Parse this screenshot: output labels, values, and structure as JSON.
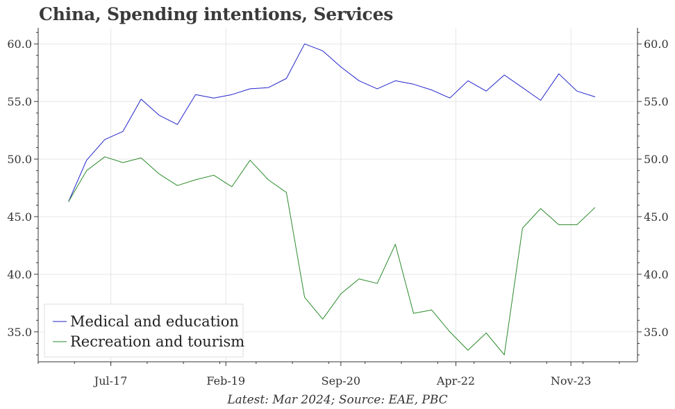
{
  "title": "China, Spending intentions, Services",
  "footer": "Latest: Mar 2024; Source: EAE, PBC",
  "colors": {
    "medical": "#2222cc",
    "recreation": "#2a8a2a",
    "grid": "#e6e6e6",
    "axis": "#333333"
  },
  "chart_data": {
    "type": "line",
    "title": "China, Spending intentions, Services",
    "ylim": [
      32.4,
      61.4
    ],
    "y_ticks": [
      35.0,
      40.0,
      45.0,
      50.0,
      55.0,
      60.0
    ],
    "y_tick_labels": [
      "35.0",
      "40.0",
      "45.0",
      "50.0",
      "55.0",
      "60.0"
    ],
    "x_tick_labels": [
      "Jul-17",
      "Feb-19",
      "Sep-20",
      "Apr-22",
      "Nov-23"
    ],
    "x_tick_dates": [
      "2017-07",
      "2019-02",
      "2020-09",
      "2022-04",
      "2023-11"
    ],
    "xlim": [
      "2016-07",
      "2024-10"
    ],
    "grid": true,
    "legend_placement": "bottom-left",
    "x": [
      "2016-12",
      "2017-03",
      "2017-06",
      "2017-09",
      "2017-12",
      "2018-03",
      "2018-06",
      "2018-09",
      "2018-12",
      "2019-03",
      "2019-06",
      "2019-09",
      "2019-12",
      "2020-03",
      "2020-06",
      "2020-09",
      "2020-12",
      "2021-03",
      "2021-06",
      "2021-09",
      "2021-12",
      "2022-03",
      "2022-06",
      "2022-09",
      "2022-12",
      "2023-03",
      "2023-06",
      "2023-09",
      "2023-12",
      "2024-03"
    ],
    "series": [
      {
        "name": "Medical and education",
        "values": [
          46.3,
          49.9,
          51.7,
          52.4,
          55.2,
          53.8,
          53.0,
          55.6,
          55.3,
          55.6,
          56.1,
          56.2,
          57.0,
          60.0,
          59.4,
          58.0,
          56.8,
          56.1,
          56.8,
          56.5,
          56.0,
          55.3,
          56.8,
          55.9,
          57.3,
          56.2,
          55.1,
          57.4,
          55.9,
          55.4
        ]
      },
      {
        "name": "Recreation and tourism",
        "values": [
          46.3,
          49.0,
          50.2,
          49.7,
          50.1,
          48.7,
          47.7,
          48.2,
          48.6,
          47.6,
          49.9,
          48.2,
          47.1,
          38.0,
          36.1,
          38.3,
          39.6,
          39.2,
          42.6,
          36.6,
          36.9,
          35.0,
          33.4,
          34.9,
          33.0,
          44.0,
          45.7,
          44.3,
          44.3,
          45.8
        ]
      }
    ]
  }
}
